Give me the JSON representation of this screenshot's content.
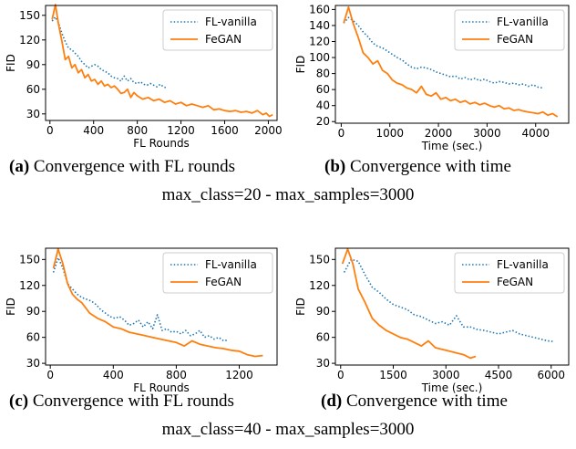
{
  "chart_data": [
    {
      "type": "line",
      "xlabel": "FL Rounds",
      "ylabel": "FID",
      "xlim": [
        -40,
        2080
      ],
      "ylim": [
        22,
        162
      ],
      "xticks": [
        0,
        400,
        800,
        1200,
        1600,
        2000
      ],
      "yticks": [
        30,
        60,
        90,
        120,
        150
      ],
      "legend": "top-right",
      "series": [
        {
          "name": "FL-vanilla",
          "style": "dotted",
          "color": "#1f77b4",
          "x": [
            20,
            50,
            80,
            110,
            140,
            170,
            200,
            230,
            260,
            290,
            320,
            350,
            380,
            410,
            440,
            470,
            500,
            530,
            560,
            590,
            620,
            650,
            680,
            710,
            740,
            770,
            800,
            830,
            860,
            890,
            920,
            950,
            980,
            1010,
            1040,
            1060
          ],
          "y": [
            143,
            148,
            140,
            128,
            118,
            110,
            108,
            104,
            100,
            94,
            90,
            86,
            88,
            90,
            88,
            84,
            82,
            80,
            76,
            74,
            73,
            70,
            76,
            70,
            73,
            68,
            67,
            69,
            66,
            65,
            67,
            65,
            63,
            66,
            63,
            62
          ]
        },
        {
          "name": "FeGAN",
          "style": "solid",
          "color": "#ff7f0e",
          "x": [
            20,
            50,
            80,
            110,
            140,
            170,
            200,
            230,
            260,
            290,
            320,
            350,
            380,
            410,
            440,
            470,
            500,
            530,
            560,
            590,
            620,
            650,
            680,
            710,
            740,
            770,
            800,
            850,
            900,
            950,
            1000,
            1050,
            1100,
            1150,
            1200,
            1250,
            1300,
            1350,
            1400,
            1450,
            1500,
            1550,
            1600,
            1650,
            1700,
            1750,
            1800,
            1850,
            1900,
            1950,
            1980,
            2010,
            2040
          ],
          "y": [
            145,
            163,
            138,
            118,
            96,
            100,
            86,
            90,
            80,
            84,
            74,
            78,
            70,
            72,
            66,
            70,
            64,
            66,
            62,
            64,
            60,
            55,
            56,
            60,
            50,
            56,
            52,
            48,
            50,
            46,
            48,
            44,
            46,
            42,
            44,
            40,
            42,
            40,
            38,
            40,
            35,
            36,
            34,
            33,
            34,
            32,
            33,
            31,
            34,
            29,
            31,
            27,
            29
          ]
        }
      ]
    },
    {
      "type": "line",
      "xlabel": "Time (sec.)",
      "ylabel": "FID",
      "xlim": [
        -120,
        4680
      ],
      "ylim": [
        18,
        165
      ],
      "xticks": [
        0,
        1000,
        2000,
        3000,
        4000
      ],
      "yticks": [
        20,
        40,
        60,
        80,
        100,
        120,
        140,
        160
      ],
      "legend": "top-right",
      "series": [
        {
          "name": "FL-vanilla",
          "style": "dotted",
          "color": "#1f77b4",
          "x": [
            50,
            150,
            250,
            350,
            450,
            550,
            650,
            750,
            850,
            950,
            1050,
            1150,
            1250,
            1350,
            1450,
            1550,
            1650,
            1750,
            1850,
            1950,
            2050,
            2150,
            2250,
            2350,
            2450,
            2550,
            2650,
            2750,
            2850,
            2950,
            3050,
            3150,
            3250,
            3350,
            3450,
            3550,
            3650,
            3750,
            3850,
            3950,
            4050,
            4150
          ],
          "y": [
            143,
            150,
            146,
            140,
            132,
            126,
            118,
            114,
            112,
            108,
            104,
            100,
            97,
            92,
            88,
            86,
            88,
            87,
            85,
            82,
            80,
            78,
            76,
            77,
            73,
            75,
            72,
            74,
            71,
            73,
            70,
            68,
            70,
            69,
            67,
            68,
            66,
            67,
            64,
            66,
            63,
            62
          ]
        },
        {
          "name": "FeGAN",
          "style": "solid",
          "color": "#ff7f0e",
          "x": [
            50,
            150,
            250,
            350,
            450,
            550,
            650,
            750,
            850,
            950,
            1050,
            1150,
            1250,
            1350,
            1450,
            1550,
            1650,
            1750,
            1850,
            1950,
            2050,
            2150,
            2250,
            2350,
            2450,
            2550,
            2650,
            2750,
            2850,
            2950,
            3050,
            3150,
            3250,
            3350,
            3450,
            3550,
            3650,
            3750,
            3850,
            3950,
            4050,
            4150,
            4250,
            4350,
            4450
          ],
          "y": [
            143,
            163,
            142,
            125,
            106,
            100,
            92,
            96,
            84,
            80,
            72,
            68,
            66,
            62,
            60,
            56,
            64,
            54,
            52,
            56,
            48,
            50,
            46,
            48,
            44,
            46,
            42,
            44,
            41,
            43,
            40,
            38,
            40,
            36,
            37,
            34,
            35,
            33,
            32,
            31,
            30,
            32,
            28,
            30,
            26
          ]
        }
      ]
    },
    {
      "type": "line",
      "xlabel": "FL Rounds",
      "ylabel": "FID",
      "xlim": [
        -30,
        1440
      ],
      "ylim": [
        28,
        163
      ],
      "xticks": [
        0,
        400,
        800,
        1200
      ],
      "yticks": [
        30,
        60,
        90,
        120,
        150
      ],
      "legend": "top-right",
      "series": [
        {
          "name": "FL-vanilla",
          "style": "dotted",
          "color": "#1f77b4",
          "x": [
            20,
            50,
            80,
            110,
            140,
            170,
            200,
            230,
            260,
            290,
            320,
            350,
            380,
            410,
            440,
            470,
            500,
            530,
            560,
            590,
            620,
            650,
            680,
            710,
            740,
            770,
            800,
            830,
            860,
            890,
            920,
            950,
            980,
            1010,
            1040,
            1070,
            1100,
            1130
          ],
          "y": [
            135,
            152,
            140,
            122,
            116,
            110,
            106,
            104,
            102,
            98,
            92,
            88,
            84,
            82,
            84,
            80,
            74,
            76,
            80,
            72,
            78,
            70,
            86,
            68,
            70,
            66,
            67,
            64,
            68,
            62,
            64,
            68,
            60,
            62,
            58,
            60,
            56,
            57
          ]
        },
        {
          "name": "FeGAN",
          "style": "solid",
          "color": "#ff7f0e",
          "x": [
            20,
            50,
            80,
            110,
            140,
            170,
            200,
            250,
            300,
            350,
            400,
            450,
            500,
            550,
            600,
            650,
            700,
            750,
            800,
            850,
            900,
            950,
            1000,
            1050,
            1100,
            1150,
            1200,
            1250,
            1300,
            1350
          ],
          "y": [
            140,
            162,
            145,
            122,
            110,
            104,
            100,
            88,
            82,
            78,
            72,
            70,
            66,
            64,
            62,
            60,
            58,
            56,
            54,
            50,
            56,
            52,
            50,
            48,
            47,
            45,
            44,
            40,
            38,
            39
          ]
        }
      ]
    },
    {
      "type": "line",
      "xlabel": "Time (sec.)",
      "ylabel": "FID",
      "xlim": [
        -150,
        6500
      ],
      "ylim": [
        28,
        163
      ],
      "xticks": [
        0,
        1500,
        3000,
        4500,
        6000
      ],
      "yticks": [
        30,
        60,
        90,
        120,
        150
      ],
      "legend": "top-right",
      "series": [
        {
          "name": "FL-vanilla",
          "style": "dotted",
          "color": "#1f77b4",
          "x": [
            100,
            300,
            500,
            700,
            900,
            1100,
            1300,
            1500,
            1700,
            1900,
            2100,
            2300,
            2500,
            2700,
            2900,
            3100,
            3300,
            3500,
            3700,
            3900,
            4100,
            4300,
            4500,
            4700,
            4900,
            5100,
            5300,
            5500,
            5700,
            5900,
            6100
          ],
          "y": [
            135,
            150,
            148,
            132,
            118,
            112,
            104,
            98,
            95,
            92,
            86,
            84,
            80,
            76,
            78,
            74,
            85,
            72,
            72,
            69,
            68,
            66,
            64,
            66,
            68,
            64,
            62,
            60,
            58,
            56,
            55
          ]
        },
        {
          "name": "FeGAN",
          "style": "solid",
          "color": "#ff7f0e",
          "x": [
            50,
            200,
            350,
            500,
            700,
            900,
            1100,
            1300,
            1500,
            1700,
            1900,
            2100,
            2300,
            2500,
            2700,
            2900,
            3100,
            3300,
            3500,
            3700,
            3850
          ],
          "y": [
            145,
            162,
            145,
            116,
            100,
            82,
            74,
            68,
            64,
            60,
            58,
            54,
            50,
            56,
            48,
            46,
            44,
            42,
            40,
            36,
            38
          ]
        }
      ]
    }
  ],
  "captions": {
    "a": {
      "letter": "(a)",
      "text": " Convergence with FL rounds"
    },
    "b": {
      "letter": "(b)",
      "text": " Convergence with time"
    },
    "c": {
      "letter": "(c)",
      "text": " Convergence with FL rounds"
    },
    "d": {
      "letter": "(d)",
      "text": " Convergence with time"
    },
    "row1": "max_class=20 - max_samples=3000",
    "row2": "max_class=40 - max_samples=3000"
  }
}
